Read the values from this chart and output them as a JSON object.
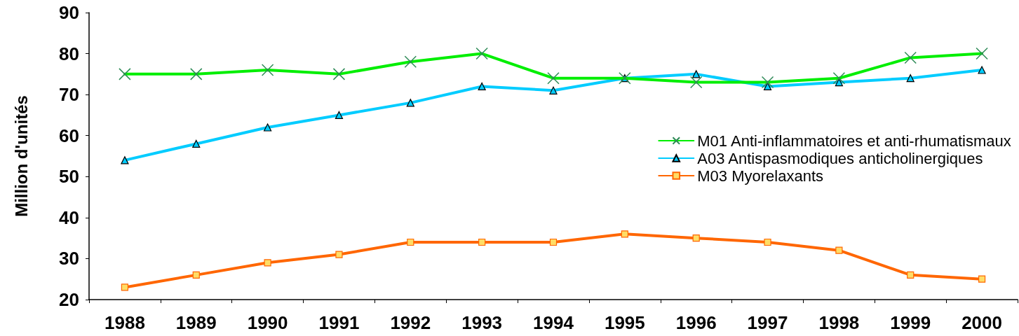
{
  "chart_data": {
    "type": "line",
    "ylabel": "Million d'unités",
    "categories": [
      "1988",
      "1989",
      "1990",
      "1991",
      "1992",
      "1993",
      "1994",
      "1995",
      "1996",
      "1997",
      "1998",
      "1999",
      "2000"
    ],
    "series": [
      {
        "name": "M01 Anti-inflammatoires et anti-rhumatismaux",
        "color": "#00ee00",
        "marker": "cross",
        "values": [
          75,
          75,
          76,
          75,
          78,
          80,
          74,
          74,
          73,
          73,
          74,
          79,
          80
        ]
      },
      {
        "name": "A03 Antispasmodiques anticholinergiques",
        "color": "#00ccff",
        "marker": "triangle",
        "values": [
          54,
          58,
          62,
          65,
          68,
          72,
          71,
          74,
          75,
          72,
          73,
          74,
          76
        ]
      },
      {
        "name": "M03 Myorelaxants",
        "color": "#ff6600",
        "marker": "square",
        "values": [
          23,
          26,
          29,
          31,
          34,
          34,
          34,
          36,
          35,
          34,
          32,
          26,
          25
        ]
      }
    ],
    "ylim": [
      20,
      90
    ],
    "yticks": [
      20,
      30,
      40,
      50,
      60,
      70,
      80,
      90
    ],
    "grid": false,
    "legend": "right",
    "line_style": "solid"
  }
}
